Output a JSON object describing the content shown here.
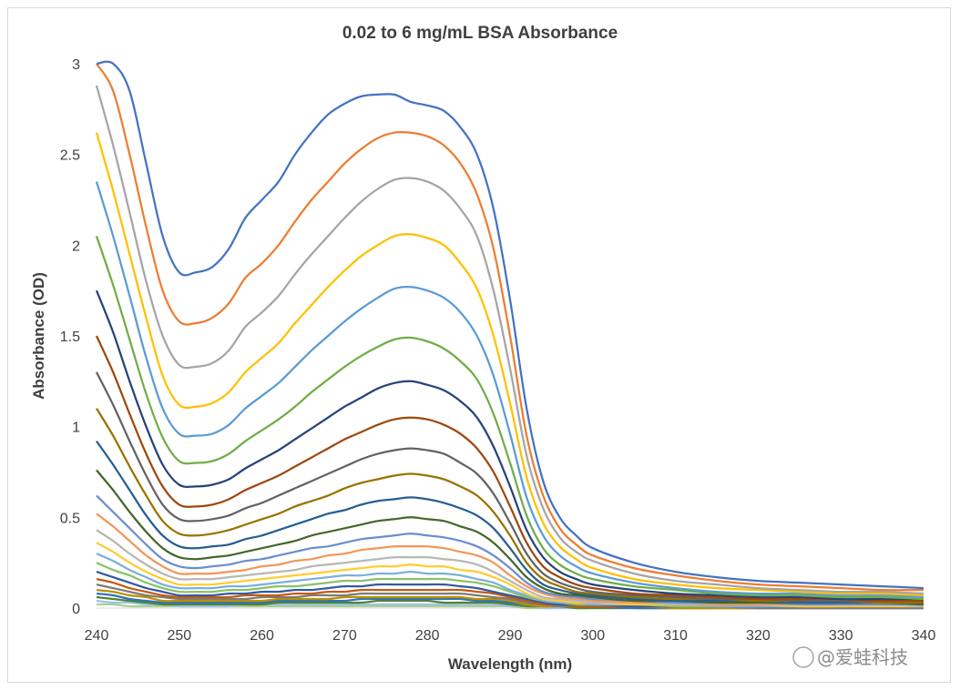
{
  "chart_data": {
    "type": "line",
    "title": "0.02 to 6 mg/mL BSA Absorbance",
    "xlabel": "Wavelength (nm)",
    "ylabel": "Absorbance (OD)",
    "xlim": [
      240,
      340
    ],
    "ylim": [
      0,
      3
    ],
    "x_ticks": [
      "240",
      "250",
      "260",
      "270",
      "280",
      "290",
      "300",
      "310",
      "320",
      "330",
      "340"
    ],
    "y_ticks": [
      "0",
      "0.5",
      "1",
      "1.5",
      "2",
      "2.5",
      "3"
    ],
    "grid": false,
    "legend": "none",
    "x": [
      240,
      242,
      244,
      246,
      248,
      250,
      252,
      254,
      256,
      258,
      260,
      262,
      264,
      266,
      268,
      270,
      272,
      274,
      276,
      278,
      280,
      282,
      284,
      286,
      288,
      290,
      292,
      294,
      296,
      298,
      300,
      305,
      310,
      315,
      320,
      325,
      330,
      335,
      340
    ],
    "series": [
      {
        "color": "#4472C4",
        "values": [
          3.0,
          3.0,
          2.85,
          2.45,
          2.05,
          1.85,
          1.85,
          1.88,
          1.98,
          2.15,
          2.25,
          2.35,
          2.5,
          2.62,
          2.72,
          2.78,
          2.82,
          2.83,
          2.83,
          2.79,
          2.77,
          2.74,
          2.65,
          2.5,
          2.2,
          1.7,
          1.1,
          0.7,
          0.5,
          0.4,
          0.33,
          0.25,
          0.2,
          0.17,
          0.15,
          0.14,
          0.13,
          0.12,
          0.11
        ]
      },
      {
        "color": "#ED7D31",
        "values": [
          3.0,
          2.85,
          2.5,
          2.1,
          1.75,
          1.58,
          1.57,
          1.6,
          1.68,
          1.82,
          1.9,
          2.0,
          2.13,
          2.25,
          2.35,
          2.45,
          2.53,
          2.59,
          2.62,
          2.62,
          2.6,
          2.55,
          2.45,
          2.28,
          1.98,
          1.5,
          0.95,
          0.62,
          0.44,
          0.35,
          0.29,
          0.22,
          0.18,
          0.15,
          0.13,
          0.12,
          0.11,
          0.1,
          0.1
        ]
      },
      {
        "color": "#A5A5A5",
        "values": [
          2.88,
          2.55,
          2.18,
          1.8,
          1.5,
          1.34,
          1.33,
          1.35,
          1.42,
          1.55,
          1.63,
          1.72,
          1.84,
          1.95,
          2.05,
          2.15,
          2.24,
          2.31,
          2.36,
          2.37,
          2.35,
          2.3,
          2.2,
          2.05,
          1.75,
          1.32,
          0.84,
          0.55,
          0.39,
          0.31,
          0.26,
          0.19,
          0.15,
          0.13,
          0.11,
          0.1,
          0.09,
          0.09,
          0.08
        ]
      },
      {
        "color": "#FFC000",
        "values": [
          2.62,
          2.3,
          1.95,
          1.6,
          1.28,
          1.12,
          1.11,
          1.13,
          1.19,
          1.3,
          1.38,
          1.46,
          1.57,
          1.67,
          1.77,
          1.86,
          1.94,
          2.0,
          2.05,
          2.06,
          2.04,
          2.0,
          1.9,
          1.76,
          1.5,
          1.13,
          0.72,
          0.47,
          0.34,
          0.27,
          0.22,
          0.16,
          0.13,
          0.11,
          0.1,
          0.09,
          0.08,
          0.08,
          0.07
        ]
      },
      {
        "color": "#5B9BD5",
        "values": [
          2.35,
          2.05,
          1.72,
          1.38,
          1.1,
          0.96,
          0.95,
          0.96,
          1.01,
          1.1,
          1.17,
          1.24,
          1.33,
          1.42,
          1.5,
          1.58,
          1.65,
          1.71,
          1.76,
          1.77,
          1.75,
          1.71,
          1.63,
          1.5,
          1.28,
          0.96,
          0.61,
          0.4,
          0.29,
          0.23,
          0.19,
          0.14,
          0.11,
          0.09,
          0.08,
          0.08,
          0.07,
          0.07,
          0.06
        ]
      },
      {
        "color": "#70AD47",
        "values": [
          2.05,
          1.78,
          1.48,
          1.18,
          0.94,
          0.81,
          0.8,
          0.81,
          0.85,
          0.92,
          0.98,
          1.04,
          1.11,
          1.19,
          1.26,
          1.33,
          1.39,
          1.44,
          1.48,
          1.49,
          1.47,
          1.43,
          1.36,
          1.26,
          1.07,
          0.8,
          0.51,
          0.33,
          0.24,
          0.19,
          0.16,
          0.12,
          0.1,
          0.08,
          0.07,
          0.07,
          0.06,
          0.06,
          0.05
        ]
      },
      {
        "color": "#264478",
        "values": [
          1.75,
          1.52,
          1.25,
          1.0,
          0.79,
          0.68,
          0.67,
          0.68,
          0.71,
          0.77,
          0.82,
          0.87,
          0.93,
          0.99,
          1.05,
          1.11,
          1.16,
          1.21,
          1.24,
          1.25,
          1.23,
          1.2,
          1.14,
          1.05,
          0.89,
          0.67,
          0.43,
          0.28,
          0.2,
          0.16,
          0.13,
          0.1,
          0.08,
          0.07,
          0.06,
          0.06,
          0.05,
          0.05,
          0.05
        ]
      },
      {
        "color": "#9E480E",
        "values": [
          1.5,
          1.3,
          1.07,
          0.85,
          0.67,
          0.57,
          0.56,
          0.57,
          0.6,
          0.65,
          0.69,
          0.73,
          0.78,
          0.83,
          0.88,
          0.93,
          0.97,
          1.01,
          1.04,
          1.05,
          1.04,
          1.01,
          0.96,
          0.88,
          0.75,
          0.56,
          0.36,
          0.23,
          0.17,
          0.13,
          0.11,
          0.08,
          0.07,
          0.06,
          0.05,
          0.05,
          0.05,
          0.04,
          0.04
        ]
      },
      {
        "color": "#636363",
        "values": [
          1.3,
          1.12,
          0.92,
          0.73,
          0.57,
          0.49,
          0.48,
          0.49,
          0.51,
          0.55,
          0.58,
          0.62,
          0.66,
          0.7,
          0.74,
          0.78,
          0.82,
          0.85,
          0.87,
          0.88,
          0.87,
          0.85,
          0.8,
          0.74,
          0.63,
          0.47,
          0.3,
          0.19,
          0.14,
          0.11,
          0.09,
          0.07,
          0.06,
          0.05,
          0.05,
          0.04,
          0.04,
          0.04,
          0.04
        ]
      },
      {
        "color": "#997300",
        "values": [
          1.1,
          0.95,
          0.78,
          0.62,
          0.48,
          0.41,
          0.4,
          0.41,
          0.43,
          0.46,
          0.49,
          0.52,
          0.56,
          0.59,
          0.62,
          0.66,
          0.69,
          0.71,
          0.73,
          0.74,
          0.73,
          0.71,
          0.67,
          0.62,
          0.53,
          0.4,
          0.25,
          0.16,
          0.12,
          0.09,
          0.08,
          0.06,
          0.05,
          0.05,
          0.04,
          0.04,
          0.04,
          0.03,
          0.03
        ]
      },
      {
        "color": "#255E91",
        "values": [
          0.92,
          0.79,
          0.65,
          0.51,
          0.4,
          0.34,
          0.33,
          0.34,
          0.35,
          0.38,
          0.4,
          0.43,
          0.46,
          0.49,
          0.52,
          0.54,
          0.57,
          0.59,
          0.6,
          0.61,
          0.6,
          0.58,
          0.55,
          0.51,
          0.44,
          0.33,
          0.21,
          0.13,
          0.1,
          0.08,
          0.07,
          0.05,
          0.04,
          0.04,
          0.04,
          0.03,
          0.03,
          0.03,
          0.03
        ]
      },
      {
        "color": "#43682B",
        "values": [
          0.76,
          0.65,
          0.53,
          0.42,
          0.33,
          0.28,
          0.27,
          0.28,
          0.29,
          0.31,
          0.33,
          0.35,
          0.37,
          0.4,
          0.42,
          0.44,
          0.46,
          0.48,
          0.49,
          0.5,
          0.49,
          0.48,
          0.45,
          0.42,
          0.36,
          0.27,
          0.17,
          0.11,
          0.08,
          0.07,
          0.06,
          0.04,
          0.04,
          0.03,
          0.03,
          0.03,
          0.03,
          0.03,
          0.02
        ]
      },
      {
        "color": "#698ED0",
        "values": [
          0.62,
          0.53,
          0.44,
          0.35,
          0.27,
          0.23,
          0.22,
          0.23,
          0.24,
          0.26,
          0.27,
          0.29,
          0.31,
          0.33,
          0.34,
          0.36,
          0.38,
          0.39,
          0.4,
          0.41,
          0.4,
          0.39,
          0.37,
          0.34,
          0.29,
          0.22,
          0.14,
          0.09,
          0.07,
          0.06,
          0.05,
          0.04,
          0.03,
          0.03,
          0.03,
          0.02,
          0.02,
          0.02,
          0.02
        ]
      },
      {
        "color": "#F1975A",
        "values": [
          0.52,
          0.45,
          0.37,
          0.29,
          0.23,
          0.19,
          0.19,
          0.19,
          0.2,
          0.21,
          0.23,
          0.24,
          0.26,
          0.27,
          0.29,
          0.3,
          0.32,
          0.33,
          0.34,
          0.34,
          0.34,
          0.33,
          0.31,
          0.29,
          0.25,
          0.18,
          0.12,
          0.08,
          0.06,
          0.05,
          0.04,
          0.03,
          0.03,
          0.02,
          0.02,
          0.02,
          0.02,
          0.02,
          0.02
        ]
      },
      {
        "color": "#B7B7B7",
        "values": [
          0.43,
          0.37,
          0.3,
          0.24,
          0.19,
          0.16,
          0.16,
          0.16,
          0.17,
          0.18,
          0.19,
          0.2,
          0.21,
          0.23,
          0.24,
          0.25,
          0.26,
          0.27,
          0.28,
          0.28,
          0.28,
          0.27,
          0.26,
          0.24,
          0.2,
          0.15,
          0.1,
          0.06,
          0.05,
          0.04,
          0.03,
          0.03,
          0.02,
          0.02,
          0.02,
          0.02,
          0.02,
          0.02,
          0.01
        ]
      },
      {
        "color": "#FFCD33",
        "values": [
          0.36,
          0.31,
          0.25,
          0.2,
          0.16,
          0.13,
          0.13,
          0.13,
          0.14,
          0.15,
          0.16,
          0.17,
          0.18,
          0.19,
          0.2,
          0.21,
          0.22,
          0.23,
          0.23,
          0.24,
          0.23,
          0.23,
          0.21,
          0.2,
          0.17,
          0.13,
          0.08,
          0.05,
          0.04,
          0.03,
          0.03,
          0.02,
          0.02,
          0.02,
          0.02,
          0.01,
          0.01,
          0.01,
          0.01
        ]
      },
      {
        "color": "#7CAFDD",
        "values": [
          0.3,
          0.26,
          0.21,
          0.17,
          0.13,
          0.11,
          0.11,
          0.11,
          0.12,
          0.12,
          0.13,
          0.14,
          0.15,
          0.16,
          0.17,
          0.18,
          0.18,
          0.19,
          0.19,
          0.2,
          0.19,
          0.19,
          0.18,
          0.16,
          0.14,
          0.1,
          0.07,
          0.04,
          0.03,
          0.03,
          0.02,
          0.02,
          0.02,
          0.01,
          0.01,
          0.01,
          0.01,
          0.01,
          0.01
        ]
      },
      {
        "color": "#8CC168",
        "values": [
          0.25,
          0.21,
          0.18,
          0.14,
          0.11,
          0.09,
          0.09,
          0.09,
          0.1,
          0.1,
          0.11,
          0.12,
          0.12,
          0.13,
          0.14,
          0.15,
          0.15,
          0.16,
          0.16,
          0.16,
          0.16,
          0.16,
          0.15,
          0.14,
          0.12,
          0.09,
          0.06,
          0.04,
          0.03,
          0.02,
          0.02,
          0.02,
          0.01,
          0.01,
          0.01,
          0.01,
          0.01,
          0.01,
          0.01
        ]
      },
      {
        "color": "#335AA1",
        "values": [
          0.2,
          0.17,
          0.14,
          0.11,
          0.09,
          0.07,
          0.07,
          0.07,
          0.08,
          0.08,
          0.09,
          0.09,
          0.1,
          0.1,
          0.11,
          0.12,
          0.12,
          0.13,
          0.13,
          0.13,
          0.13,
          0.13,
          0.12,
          0.11,
          0.09,
          0.07,
          0.05,
          0.03,
          0.02,
          0.02,
          0.02,
          0.01,
          0.01,
          0.01,
          0.01,
          0.01,
          0.01,
          0.01,
          0.01
        ]
      },
      {
        "color": "#C55A11",
        "values": [
          0.16,
          0.14,
          0.11,
          0.09,
          0.07,
          0.06,
          0.06,
          0.06,
          0.06,
          0.07,
          0.07,
          0.07,
          0.08,
          0.08,
          0.09,
          0.09,
          0.1,
          0.1,
          0.1,
          0.1,
          0.1,
          0.1,
          0.1,
          0.09,
          0.08,
          0.06,
          0.04,
          0.02,
          0.02,
          0.01,
          0.01,
          0.01,
          0.01,
          0.01,
          0.01,
          0.01,
          0.01,
          0.01,
          0.01
        ]
      },
      {
        "color": "#7B7B7B",
        "values": [
          0.13,
          0.11,
          0.09,
          0.07,
          0.06,
          0.05,
          0.05,
          0.05,
          0.05,
          0.05,
          0.06,
          0.06,
          0.06,
          0.07,
          0.07,
          0.07,
          0.08,
          0.08,
          0.08,
          0.08,
          0.08,
          0.08,
          0.08,
          0.07,
          0.06,
          0.05,
          0.03,
          0.02,
          0.01,
          0.01,
          0.01,
          0.01,
          0.01,
          0.01,
          0.0,
          0.0,
          0.0,
          0.0,
          0.0
        ]
      },
      {
        "color": "#BF9000",
        "values": [
          0.1,
          0.09,
          0.07,
          0.06,
          0.04,
          0.04,
          0.04,
          0.04,
          0.04,
          0.04,
          0.04,
          0.05,
          0.05,
          0.05,
          0.05,
          0.06,
          0.06,
          0.06,
          0.06,
          0.06,
          0.06,
          0.06,
          0.06,
          0.05,
          0.05,
          0.04,
          0.02,
          0.01,
          0.01,
          0.01,
          0.01,
          0.01,
          0.0,
          0.0,
          0.0,
          0.0,
          0.0,
          0.0,
          0.0
        ]
      },
      {
        "color": "#2E75B6",
        "values": [
          0.08,
          0.07,
          0.05,
          0.04,
          0.03,
          0.03,
          0.03,
          0.03,
          0.03,
          0.03,
          0.03,
          0.04,
          0.04,
          0.04,
          0.04,
          0.04,
          0.05,
          0.05,
          0.05,
          0.05,
          0.05,
          0.05,
          0.05,
          0.04,
          0.04,
          0.03,
          0.02,
          0.01,
          0.01,
          0.01,
          0.01,
          0.0,
          0.0,
          0.0,
          0.0,
          0.0,
          0.0,
          0.0,
          0.0
        ]
      },
      {
        "color": "#548235",
        "values": [
          0.06,
          0.05,
          0.04,
          0.03,
          0.02,
          0.02,
          0.02,
          0.02,
          0.02,
          0.02,
          0.02,
          0.03,
          0.03,
          0.03,
          0.03,
          0.03,
          0.03,
          0.04,
          0.04,
          0.04,
          0.04,
          0.03,
          0.03,
          0.03,
          0.03,
          0.02,
          0.01,
          0.01,
          0.01,
          0.0,
          0.0,
          0.0,
          0.0,
          0.0,
          0.0,
          0.0,
          0.0,
          0.0,
          0.0
        ]
      },
      {
        "color": "#9DC3E6",
        "values": [
          0.04,
          0.03,
          0.03,
          0.02,
          0.02,
          0.01,
          0.01,
          0.01,
          0.01,
          0.02,
          0.02,
          0.02,
          0.02,
          0.02,
          0.02,
          0.02,
          0.02,
          0.02,
          0.02,
          0.02,
          0.02,
          0.02,
          0.02,
          0.02,
          0.02,
          0.01,
          0.01,
          0.0,
          0.0,
          0.0,
          0.0,
          0.0,
          0.0,
          0.0,
          0.0,
          0.0,
          0.0,
          0.0,
          0.0
        ]
      },
      {
        "color": "#A9D18E",
        "values": [
          0.02,
          0.02,
          0.01,
          0.01,
          0.01,
          0.01,
          0.01,
          0.01,
          0.01,
          0.01,
          0.01,
          0.01,
          0.01,
          0.01,
          0.01,
          0.01,
          0.01,
          0.01,
          0.01,
          0.01,
          0.01,
          0.01,
          0.01,
          0.01,
          0.01,
          0.01,
          0.0,
          0.0,
          0.0,
          0.0,
          0.0,
          0.0,
          0.0,
          0.0,
          0.0,
          0.0,
          0.0,
          0.0,
          0.0
        ]
      }
    ]
  },
  "watermark": "@爱蛙科技"
}
